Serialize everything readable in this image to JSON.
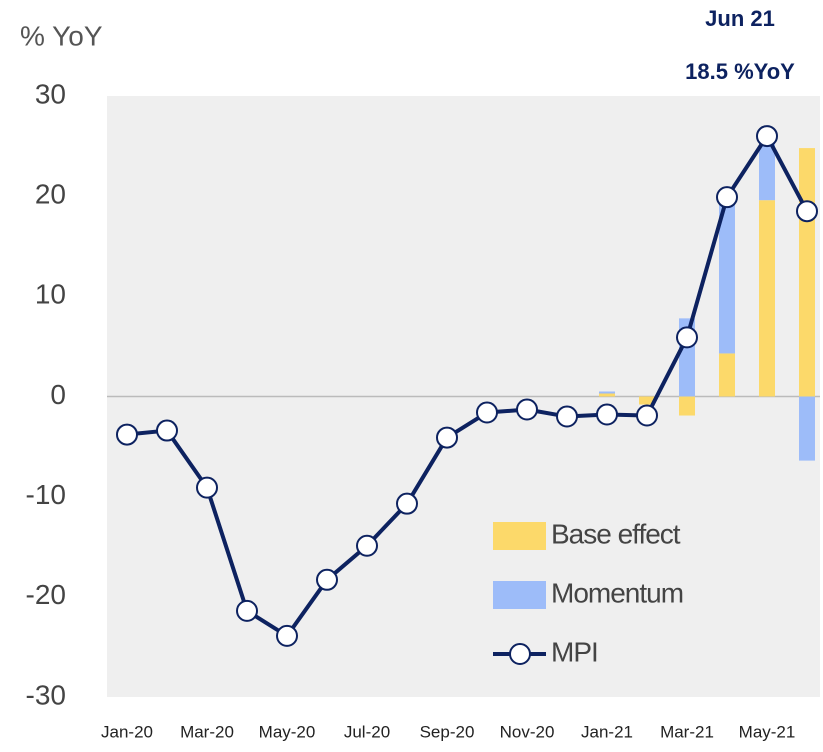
{
  "chart_data": {
    "type": "bar",
    "y_label": "% YoY",
    "annotations": [
      "Jun 21",
      "18.5 %YoY"
    ],
    "categories": [
      "Jan-20",
      null,
      "Mar-20",
      null,
      "May-20",
      null,
      "Jul-20",
      null,
      "Sep-20",
      null,
      "Nov-20",
      null,
      "Jan-21",
      null,
      "Mar-21",
      null,
      "May-21",
      null
    ],
    "series": [
      {
        "name": "Base effect",
        "type": "bar",
        "color": "#fcd96a",
        "values": [
          null,
          null,
          null,
          null,
          null,
          null,
          null,
          null,
          null,
          null,
          null,
          null,
          0.3,
          -0.8,
          -1.9,
          4.3,
          19.6,
          24.8
        ]
      },
      {
        "name": "Momentum",
        "type": "bar",
        "color": "#9dbcf9",
        "values": [
          null,
          null,
          null,
          null,
          null,
          null,
          null,
          null,
          null,
          null,
          null,
          null,
          0.2,
          0,
          7.8,
          15.2,
          5.9,
          -6.4
        ]
      },
      {
        "name": "MPI",
        "type": "line",
        "color": "#0d2260",
        "values": [
          -3.8,
          -3.4,
          -9.1,
          -21.4,
          -23.9,
          -18.3,
          -14.9,
          -10.7,
          -4.1,
          -1.6,
          -1.3,
          -2.0,
          -1.8,
          -1.9,
          5.9,
          19.9,
          26.0,
          18.5
        ]
      }
    ],
    "ylim": [
      -30,
      30
    ],
    "yticks": [
      -30,
      -20,
      -10,
      0,
      10,
      20,
      30
    ],
    "grid": false
  }
}
